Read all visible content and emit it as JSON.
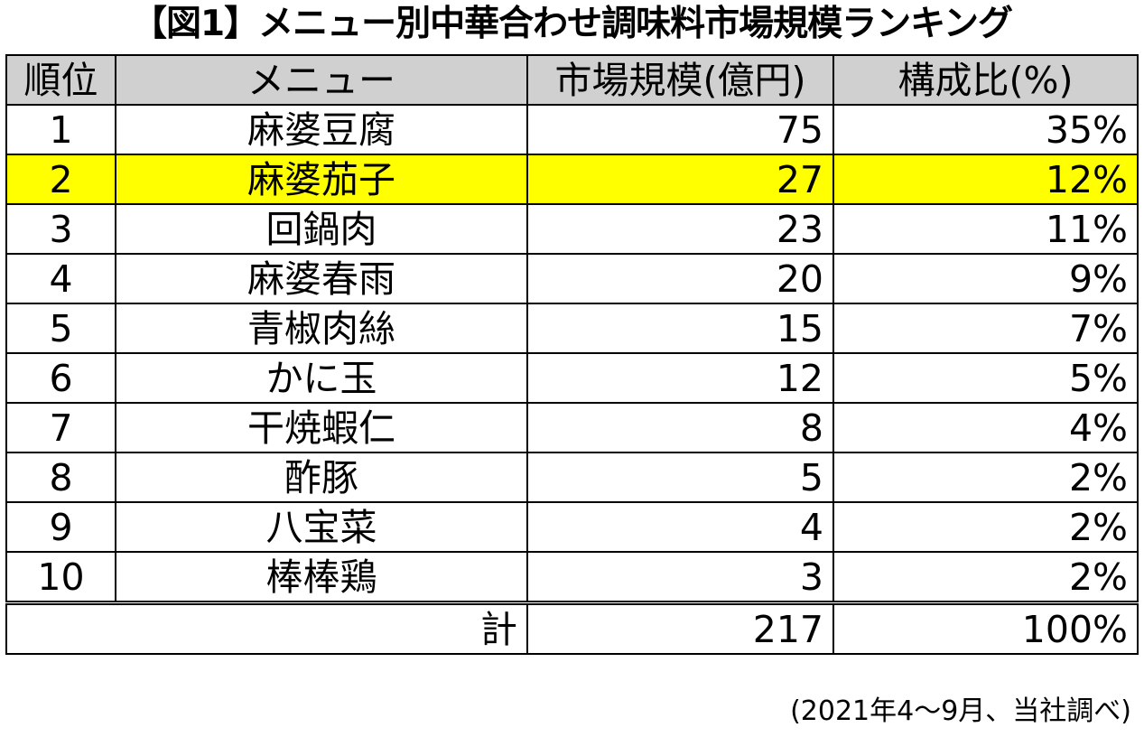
{
  "title": "【図1】メニュー別中華合わせ調味料市場規模ランキング",
  "source_note": "(2021年4～9月、当社調べ)",
  "colors": {
    "header_bg": "#d0d0d0",
    "highlight_bg": "#ffff00"
  },
  "chart_data": {
    "type": "table",
    "title": "【図1】メニュー別中華合わせ調味料市場規模ランキング",
    "columns": [
      "順位",
      "メニュー",
      "市場規模(億円)",
      "構成比(%)"
    ],
    "rows": [
      {
        "rank": "1",
        "menu": "麻婆豆腐",
        "size": "75",
        "share": "35%"
      },
      {
        "rank": "2",
        "menu": "麻婆茄子",
        "size": "27",
        "share": "12%"
      },
      {
        "rank": "3",
        "menu": "回鍋肉",
        "size": "23",
        "share": "11%"
      },
      {
        "rank": "4",
        "menu": "麻婆春雨",
        "size": "20",
        "share": "9%"
      },
      {
        "rank": "5",
        "menu": "青椒肉絲",
        "size": "15",
        "share": "7%"
      },
      {
        "rank": "6",
        "menu": "かに玉",
        "size": "12",
        "share": "5%"
      },
      {
        "rank": "7",
        "menu": "干焼蝦仁",
        "size": "8",
        "share": "4%"
      },
      {
        "rank": "8",
        "menu": "酢豚",
        "size": "5",
        "share": "2%"
      },
      {
        "rank": "9",
        "menu": "八宝菜",
        "size": "4",
        "share": "2%"
      },
      {
        "rank": "10",
        "menu": "棒棒鶏",
        "size": "3",
        "share": "2%"
      }
    ],
    "highlighted_rank": "2",
    "total": {
      "label": "計",
      "size": "217",
      "share": "100%"
    }
  }
}
